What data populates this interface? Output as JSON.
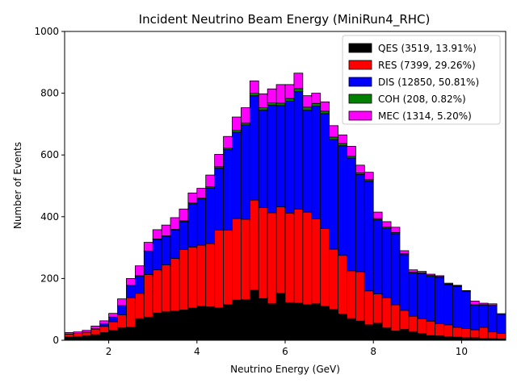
{
  "chart_data": {
    "type": "bar",
    "title": "Incident Neutrino Beam Energy (MiniRun4_RHC)",
    "xlabel": "Neutrino Energy (GeV)",
    "ylabel": "Number of Events",
    "stacked": true,
    "xlim": [
      1,
      11
    ],
    "ylim": [
      0,
      1000
    ],
    "xticks": [
      2,
      4,
      6,
      8,
      10
    ],
    "yticks": [
      0,
      200,
      400,
      600,
      800,
      1000
    ],
    "bin_edges": [
      1.0,
      1.2,
      1.4,
      1.6,
      1.8,
      2.0,
      2.2,
      2.4,
      2.6,
      2.8,
      3.0,
      3.2,
      3.4,
      3.6,
      3.8,
      4.0,
      4.2,
      4.4,
      4.6,
      4.8,
      5.0,
      5.2,
      5.4,
      5.6,
      5.8,
      6.0,
      6.2,
      6.4,
      6.6,
      6.8,
      7.0,
      7.2,
      7.4,
      7.6,
      7.8,
      8.0,
      8.2,
      8.4,
      8.6,
      8.8,
      9.0,
      9.2,
      9.4,
      9.6,
      9.8,
      10.0,
      10.2,
      10.4,
      10.6,
      10.8,
      11.0
    ],
    "grid": false,
    "legend_position": "top-right",
    "series": [
      {
        "name": "QES (3519, 13.91%)",
        "color": "#000000",
        "values": [
          10,
          12,
          14,
          18,
          25,
          32,
          40,
          42,
          70,
          75,
          88,
          92,
          95,
          98,
          104,
          110,
          108,
          105,
          115,
          130,
          132,
          162,
          135,
          118,
          152,
          122,
          120,
          115,
          118,
          110,
          100,
          85,
          70,
          62,
          50,
          55,
          40,
          30,
          35,
          28,
          22,
          15,
          14,
          12,
          10,
          8,
          8,
          6,
          5,
          4
        ]
      },
      {
        "name": "RES (7399, 29.26%)",
        "color": "#ff0000",
        "values": [
          10,
          10,
          12,
          18,
          20,
          28,
          42,
          96,
          82,
          138,
          140,
          152,
          170,
          196,
          198,
          198,
          205,
          252,
          242,
          264,
          260,
          292,
          295,
          295,
          280,
          290,
          305,
          300,
          275,
          252,
          195,
          190,
          155,
          160,
          110,
          95,
          98,
          85,
          62,
          50,
          48,
          47,
          40,
          38,
          32,
          30,
          26,
          36,
          22,
          18
        ]
      },
      {
        "name": "DIS (12850, 50.81%)",
        "color": "#0000ff",
        "values": [
          0,
          0,
          0,
          2,
          8,
          15,
          30,
          40,
          56,
          75,
          98,
          92,
          92,
          90,
          140,
          150,
          180,
          200,
          260,
          280,
          305,
          338,
          315,
          348,
          328,
          362,
          380,
          330,
          365,
          372,
          355,
          355,
          365,
          315,
          355,
          240,
          225,
          230,
          180,
          140,
          145,
          145,
          150,
          130,
          132,
          120,
          80,
          72,
          85,
          62
        ]
      },
      {
        "name": "COH (208, 0.82%)",
        "color": "#008000",
        "values": [
          0,
          0,
          0,
          0,
          0,
          0,
          0,
          0,
          1,
          1,
          2,
          2,
          2,
          3,
          3,
          3,
          4,
          5,
          5,
          6,
          6,
          8,
          8,
          8,
          8,
          9,
          10,
          10,
          9,
          8,
          8,
          7,
          6,
          5,
          5,
          4,
          4,
          4,
          3,
          3,
          3,
          3,
          2,
          2,
          2,
          1,
          1,
          1,
          1,
          0
        ]
      },
      {
        "name": "MEC (1314, 5.20%)",
        "color": "#ff00ff",
        "values": [
          5,
          5,
          6,
          8,
          10,
          12,
          22,
          22,
          32,
          28,
          30,
          35,
          38,
          38,
          32,
          31,
          38,
          40,
          38,
          43,
          50,
          40,
          45,
          45,
          60,
          45,
          50,
          37,
          33,
          30,
          37,
          28,
          32,
          25,
          24,
          21,
          17,
          17,
          10,
          7,
          5,
          4,
          3,
          3,
          2,
          2,
          12,
          5,
          5,
          2
        ]
      }
    ]
  }
}
